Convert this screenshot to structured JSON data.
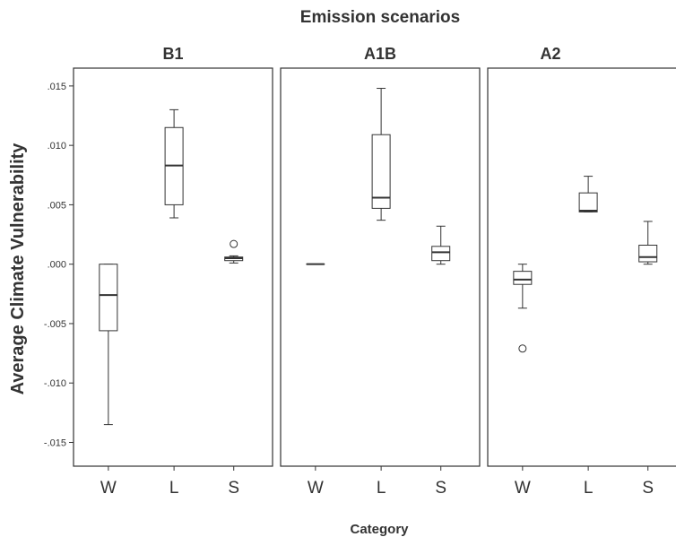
{
  "chart_data": {
    "type": "boxplot",
    "title": "Emission scenarios",
    "xlabel": "Category",
    "ylabel": "Average Climate Vulnerability",
    "categories": [
      "W",
      "L",
      "S"
    ],
    "ylim": [
      -0.017,
      0.0165
    ],
    "yticks": [
      0.015,
      0.01,
      0.005,
      0.0,
      -0.005,
      -0.01,
      -0.015
    ],
    "ytick_labels": [
      ".015",
      ".010",
      ".005",
      ".000",
      "-.005",
      "-.010",
      "-.015"
    ],
    "grid": false,
    "legend": "none",
    "panels": [
      {
        "name": "B1",
        "boxes": [
          {
            "category": "W",
            "whisker_low": -0.0135,
            "q1": -0.0056,
            "median": -0.0026,
            "q3": 0.0,
            "whisker_high": 0.0,
            "outliers": []
          },
          {
            "category": "L",
            "whisker_low": 0.0039,
            "q1": 0.005,
            "median": 0.0083,
            "q3": 0.0115,
            "whisker_high": 0.013,
            "outliers": []
          },
          {
            "category": "S",
            "whisker_low": 0.0001,
            "q1": 0.0003,
            "median": 0.0005,
            "q3": 0.0006,
            "whisker_high": 0.0007,
            "outliers": [
              0.0017
            ]
          }
        ]
      },
      {
        "name": "A1B",
        "boxes": [
          {
            "category": "W",
            "whisker_low": 0.0,
            "q1": 0.0,
            "median": 0.0,
            "q3": 0.0,
            "whisker_high": 0.0,
            "outliers": []
          },
          {
            "category": "L",
            "whisker_low": 0.0037,
            "q1": 0.0047,
            "median": 0.0056,
            "q3": 0.0109,
            "whisker_high": 0.0148,
            "outliers": []
          },
          {
            "category": "S",
            "whisker_low": 0.0,
            "q1": 0.0003,
            "median": 0.001,
            "q3": 0.0015,
            "whisker_high": 0.0032,
            "outliers": []
          }
        ]
      },
      {
        "name": "A2",
        "boxes": [
          {
            "category": "W",
            "whisker_low": -0.0037,
            "q1": -0.0017,
            "median": -0.0013,
            "q3": -0.0006,
            "whisker_high": 0.0,
            "outliers": [
              -0.0071
            ]
          },
          {
            "category": "L",
            "whisker_low": 0.0044,
            "q1": 0.0044,
            "median": 0.0045,
            "q3": 0.006,
            "whisker_high": 0.0074,
            "outliers": []
          },
          {
            "category": "S",
            "whisker_low": 0.0,
            "q1": 0.0002,
            "median": 0.0006,
            "q3": 0.0016,
            "whisker_high": 0.0036,
            "outliers": []
          }
        ]
      }
    ]
  },
  "colors": {
    "ink": "#333333",
    "title_ink": "#333333"
  }
}
